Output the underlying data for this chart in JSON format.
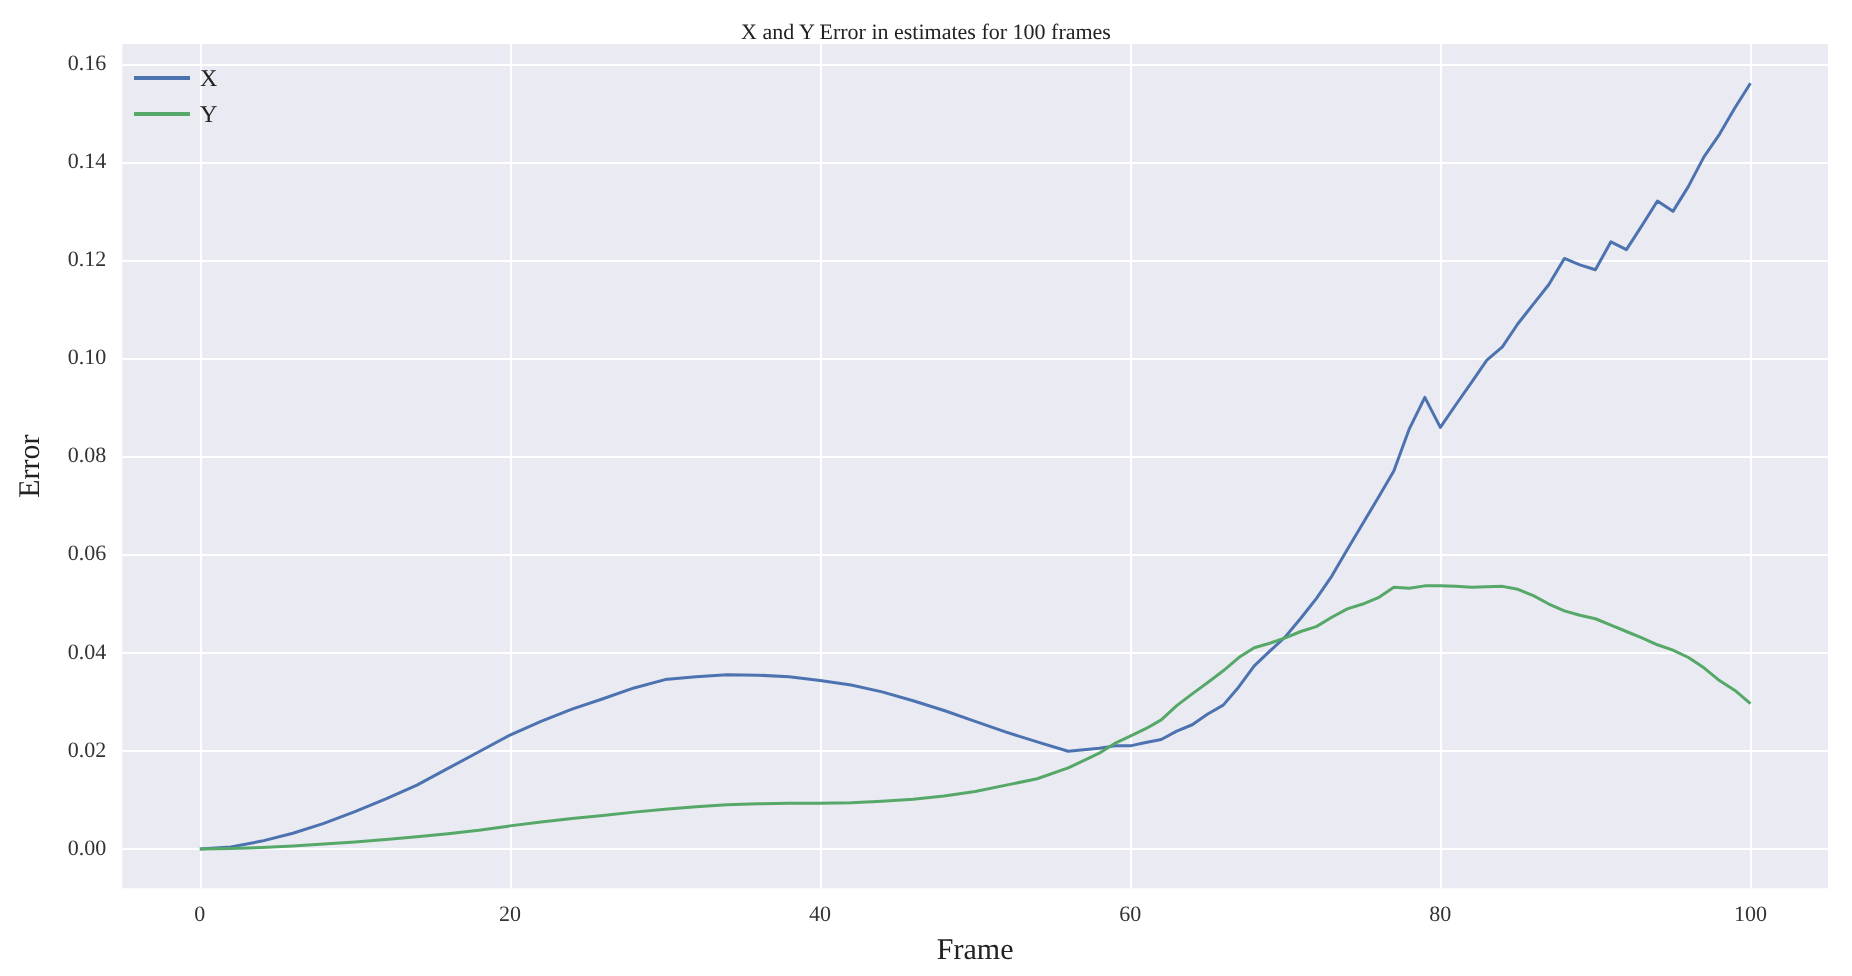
{
  "chart_data": {
    "type": "line",
    "title": "X and Y Error in estimates for 100 frames",
    "xlabel": "Frame",
    "ylabel": "Error",
    "x": [
      0,
      2,
      4,
      6,
      8,
      10,
      12,
      14,
      16,
      18,
      20,
      22,
      24,
      26,
      28,
      30,
      32,
      34,
      36,
      38,
      40,
      42,
      44,
      46,
      48,
      50,
      52,
      54,
      56,
      58,
      59,
      60,
      61,
      62,
      63,
      64,
      65,
      66,
      67,
      68,
      69,
      70,
      71,
      72,
      73,
      74,
      75,
      76,
      77,
      78,
      79,
      80,
      81,
      82,
      83,
      84,
      85,
      86,
      87,
      88,
      89,
      90,
      91,
      92,
      93,
      94,
      95,
      96,
      97,
      98,
      99,
      100
    ],
    "series": [
      {
        "name": "X",
        "color": "#4c72b0",
        "values": [
          0,
          0.0004,
          0.0016,
          0.0032,
          0.0052,
          0.0076,
          0.0102,
          0.013,
          0.0164,
          0.0198,
          0.0232,
          0.026,
          0.0285,
          0.0306,
          0.0328,
          0.0345,
          0.0351,
          0.0355,
          0.0354,
          0.0351,
          0.0343,
          0.0334,
          0.032,
          0.0302,
          0.0282,
          0.026,
          0.0238,
          0.0218,
          0.0199,
          0.0205,
          0.021,
          0.021,
          0.0217,
          0.0223,
          0.024,
          0.0253,
          0.0275,
          0.0293,
          0.033,
          0.0373,
          0.0403,
          0.0432,
          0.047,
          0.051,
          0.0556,
          0.061,
          0.0663,
          0.0716,
          0.077,
          0.0856,
          0.092,
          0.0859,
          0.0905,
          0.095,
          0.0996,
          0.1023,
          0.107,
          0.111,
          0.115,
          0.1203,
          0.119,
          0.118,
          0.1237,
          0.1221,
          0.127,
          0.132,
          0.1299,
          0.135,
          0.141,
          0.1456,
          0.151,
          0.156
        ]
      },
      {
        "name": "Y",
        "color": "#55a868",
        "values": [
          0,
          0.0001,
          0.0003,
          0.0006,
          0.001,
          0.0014,
          0.0019,
          0.0025,
          0.0031,
          0.0038,
          0.0047,
          0.0055,
          0.0062,
          0.0068,
          0.0075,
          0.0081,
          0.0086,
          0.009,
          0.0092,
          0.0093,
          0.0093,
          0.0094,
          0.0097,
          0.0101,
          0.0108,
          0.0117,
          0.013,
          0.0143,
          0.0165,
          0.0195,
          0.0215,
          0.023,
          0.0245,
          0.0263,
          0.0292,
          0.0316,
          0.0339,
          0.0363,
          0.039,
          0.041,
          0.0419,
          0.043,
          0.0443,
          0.0453,
          0.0472,
          0.0489,
          0.0499,
          0.0512,
          0.0533,
          0.0531,
          0.0536,
          0.0536,
          0.0535,
          0.0533,
          0.0534,
          0.0535,
          0.0529,
          0.0516,
          0.0499,
          0.0485,
          0.0476,
          0.0469,
          0.0456,
          0.0443,
          0.043,
          0.0416,
          0.0405,
          0.039,
          0.0369,
          0.0343,
          0.0323,
          0.0296
        ]
      }
    ],
    "xlim": [
      -5,
      105
    ],
    "xticks": [
      0,
      20,
      40,
      60,
      80,
      100
    ],
    "ylim": [
      -0.008,
      0.164
    ],
    "yticks": [
      {
        "value": 0,
        "label": "0.00"
      },
      {
        "value": 0.02,
        "label": "0.02"
      },
      {
        "value": 0.04,
        "label": "0.04"
      },
      {
        "value": 0.06,
        "label": "0.06"
      },
      {
        "value": 0.08,
        "label": "0.08"
      },
      {
        "value": 0.1,
        "label": "0.10"
      },
      {
        "value": 0.12,
        "label": "0.12"
      },
      {
        "value": 0.14,
        "label": "0.14"
      },
      {
        "value": 0.16,
        "label": "0.16"
      }
    ],
    "grid": true,
    "legend": "top left",
    "marker": "none",
    "line_style": "solid"
  }
}
